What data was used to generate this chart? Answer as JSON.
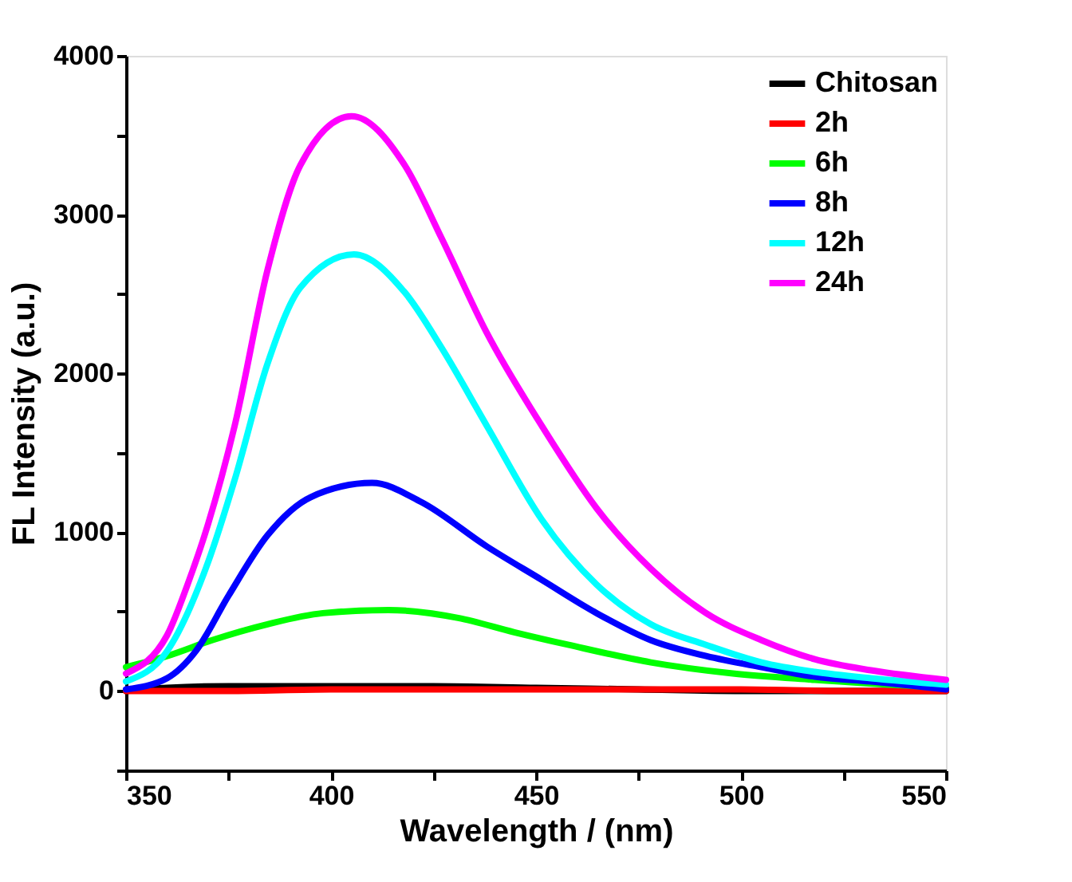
{
  "chart_data": {
    "type": "line",
    "xlabel": "Wavelength / (nm)",
    "ylabel": "FL Intensity (a.u.)",
    "xlim": [
      350,
      550
    ],
    "ylim": [
      -500,
      4000
    ],
    "xticks": [
      350,
      {
        "value": 375,
        "label": null
      },
      400,
      {
        "value": 425,
        "label": null
      },
      450,
      {
        "value": 475,
        "label": null
      },
      500,
      {
        "value": 525,
        "label": null
      },
      550
    ],
    "yticks": [
      {
        "value": -500,
        "label": null
      },
      0,
      {
        "value": 500,
        "label": null
      },
      1000,
      {
        "value": 1500,
        "label": null
      },
      2000,
      {
        "value": 2500,
        "label": null
      },
      3000,
      {
        "value": 3500,
        "label": null
      },
      4000
    ],
    "grid": false,
    "legend": "top right",
    "marker": "none",
    "line_style": "solid",
    "series": [
      {
        "name": "Chitosan",
        "color": "#000000",
        "x": [
          350,
          360,
          375,
          400,
          425,
          450,
          475,
          500,
          525,
          550
        ],
        "values": [
          0,
          20,
          30,
          30,
          30,
          20,
          10,
          0,
          0,
          0
        ]
      },
      {
        "name": "2h",
        "color": "#ff0000",
        "x": [
          350,
          360,
          375,
          400,
          425,
          450,
          475,
          500,
          525,
          550
        ],
        "values": [
          0,
          0,
          0,
          10,
          10,
          10,
          10,
          10,
          0,
          0
        ]
      },
      {
        "name": "6h",
        "color": "#00ff00",
        "x": [
          350,
          360,
          371,
          384.5,
          398,
          414,
          431,
          444.7,
          458,
          478,
          498,
          518,
          550
        ],
        "values": [
          150,
          220,
          320,
          420,
          490,
          510,
          460,
          370,
          290,
          180,
          110,
          70,
          20
        ]
      },
      {
        "name": "8h",
        "color": "#0000ff",
        "x": [
          350,
          360,
          367,
          375,
          384.5,
          395,
          410,
          422,
          438,
          451.4,
          464.8,
          478,
          491.5,
          505,
          518,
          531.7,
          550
        ],
        "values": [
          10,
          80,
          250,
          600,
          980,
          1220,
          1310,
          1190,
          910,
          700,
          490,
          320,
          220,
          150,
          90,
          60,
          10
        ]
      },
      {
        "name": "12h",
        "color": "#00ffff",
        "x": [
          350,
          360,
          370,
          376.5,
          384.5,
          392.5,
          405.6,
          418,
          427,
          438,
          451.4,
          464.8,
          478,
          491.5,
          505,
          518,
          531.7,
          550
        ],
        "values": [
          60,
          250,
          810,
          1330,
          2060,
          2540,
          2750,
          2510,
          2160,
          1670,
          1080,
          670,
          420,
          290,
          180,
          120,
          80,
          40
        ]
      },
      {
        "name": "24h",
        "color": "#ff00ff",
        "x": [
          350,
          360,
          365,
          370,
          376.5,
          384.5,
          392.5,
          405,
          418,
          427,
          437.9,
          451.4,
          464.8,
          478,
          491.5,
          505,
          518,
          531.7,
          550
        ],
        "values": [
          110,
          350,
          670,
          1050,
          1670,
          2650,
          3310,
          3620,
          3310,
          2850,
          2260,
          1670,
          1150,
          770,
          490,
          320,
          200,
          130,
          70
        ]
      }
    ]
  }
}
